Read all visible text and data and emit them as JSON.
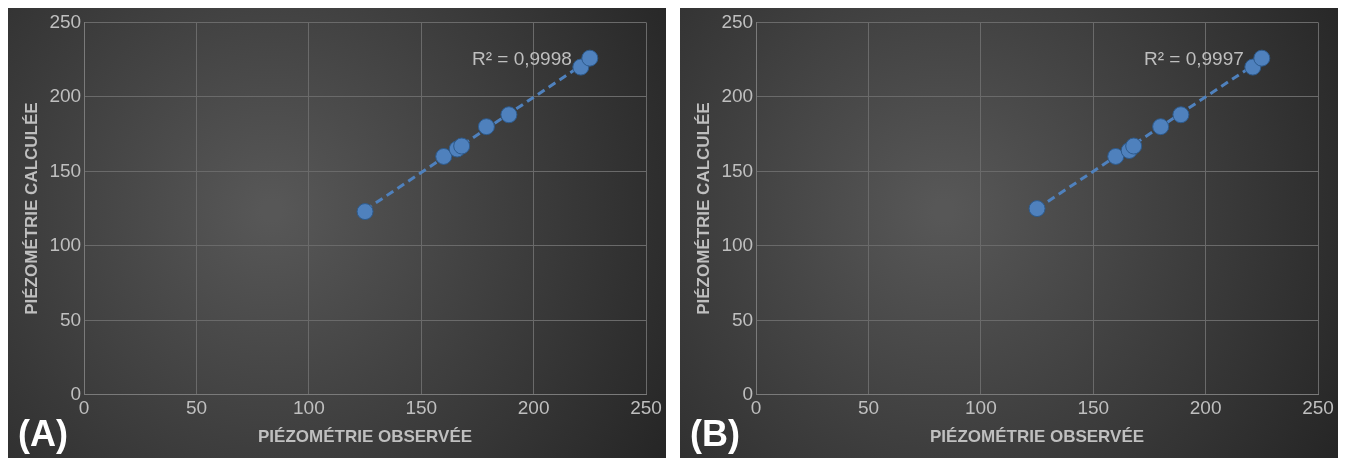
{
  "chart_data": [
    {
      "type": "scatter",
      "xlabel": "PIÉZOMÉTRIE OBSERVÉE",
      "ylabel": "PIÉZOMÉTRIE CALCULÉE",
      "xlim": [
        0,
        250
      ],
      "ylim": [
        0,
        250
      ],
      "xticks": [
        0,
        50,
        100,
        150,
        200,
        250
      ],
      "yticks": [
        0,
        50,
        100,
        150,
        200,
        250
      ],
      "grid": true,
      "legend": false,
      "marker": "circle",
      "annotations": [
        {
          "text": "R² = 0,9998",
          "x": 217,
          "y": 225
        },
        "(A)"
      ],
      "series": [
        {
          "type": "scatter",
          "color": "#4f81bd",
          "x": [
            125,
            160,
            166,
            168,
            179,
            189,
            221,
            225
          ],
          "values": [
            123,
            160,
            165,
            167,
            180,
            188,
            220,
            226
          ]
        },
        {
          "type": "line",
          "color": "#4f81bd",
          "x": [
            125,
            225
          ],
          "values": [
            124,
            225
          ],
          "marker": "none",
          "line_style": "dashed"
        }
      ]
    },
    {
      "type": "scatter",
      "xlabel": "PIÉZOMÉTRIE OBSERVÉE",
      "ylabel": "PIÉZOMÉTRIE CALCULÉE",
      "xlim": [
        0,
        250
      ],
      "ylim": [
        0,
        250
      ],
      "xticks": [
        0,
        50,
        100,
        150,
        200,
        250
      ],
      "yticks": [
        0,
        50,
        100,
        150,
        200,
        250
      ],
      "grid": true,
      "legend": false,
      "marker": "circle",
      "annotations": [
        {
          "text": "R² = 0,9997",
          "x": 217,
          "y": 225
        },
        "(B)"
      ],
      "series": [
        {
          "type": "scatter",
          "color": "#4f81bd",
          "x": [
            125,
            160,
            166,
            168,
            180,
            189,
            221,
            225
          ],
          "values": [
            125,
            160,
            164,
            167,
            180,
            188,
            220,
            226
          ]
        },
        {
          "type": "line",
          "color": "#4f81bd",
          "x": [
            125,
            225
          ],
          "values": [
            125,
            225
          ],
          "marker": "none",
          "line_style": "dashed"
        }
      ]
    }
  ]
}
